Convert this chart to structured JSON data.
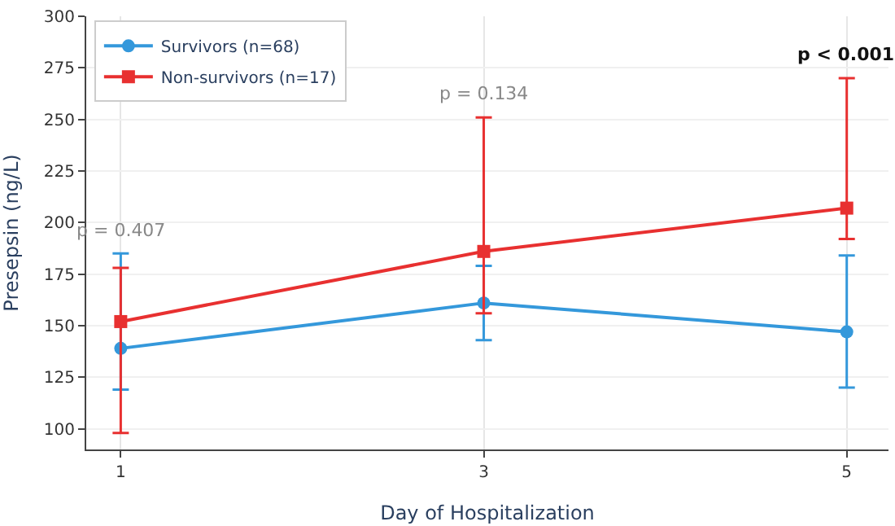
{
  "chart_data": {
    "type": "line",
    "xlabel": "Day of Hospitalization",
    "ylabel": "Presepsin (ng/L)",
    "x": [
      1,
      3,
      5
    ],
    "xlim": [
      0.81,
      5.23
    ],
    "xticks": [
      1,
      3,
      5
    ],
    "ylim": [
      90,
      300
    ],
    "yticks": [
      100,
      125,
      150,
      175,
      200,
      225,
      250,
      275,
      300
    ],
    "series": [
      {
        "name": "Survivors (n=68)",
        "color": "#3498db",
        "marker": "circle",
        "values": [
          139,
          161,
          147
        ],
        "errors": [
          [
            119,
            185
          ],
          [
            143,
            179
          ],
          [
            120,
            184
          ]
        ]
      },
      {
        "name": "Non-survivors (n=17)",
        "color": "#e83030",
        "marker": "square",
        "values": [
          152,
          186,
          207
        ],
        "errors": [
          [
            98,
            178
          ],
          [
            156,
            251
          ],
          [
            192,
            270
          ]
        ]
      }
    ],
    "annotations": [
      "p = 0.407",
      "p = 0.134",
      "p < 0.001"
    ],
    "grid": true,
    "legend": "top left"
  }
}
